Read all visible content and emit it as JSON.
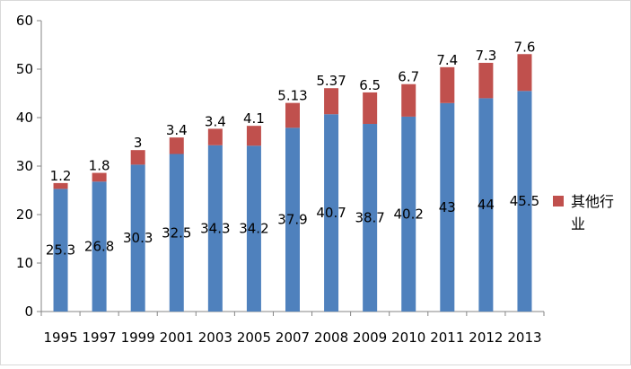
{
  "chart_data": {
    "type": "bar",
    "stacked": true,
    "title": "",
    "xlabel": "",
    "ylabel": "",
    "ylim": [
      0,
      60
    ],
    "yticks": [
      0,
      10,
      20,
      30,
      40,
      50,
      60
    ],
    "grid": false,
    "legend_position": "right",
    "categories": [
      "1995",
      "1997",
      "1999",
      "2001",
      "2003",
      "2005",
      "2007",
      "2008",
      "2009",
      "2010",
      "2011",
      "2012",
      "2013"
    ],
    "series": [
      {
        "color": "#4f81bd",
        "values": [
          25.3,
          26.8,
          30.3,
          32.5,
          34.3,
          34.2,
          37.9,
          40.7,
          38.7,
          40.2,
          43,
          44,
          45.5
        ],
        "labels": [
          "25.3",
          "26.8",
          "30.3",
          "32.5",
          "34.3",
          "34.2",
          "37.9",
          "40.7",
          "38.7",
          "40.2",
          "43",
          "44",
          "45.5"
        ]
      },
      {
        "name": "其他行业",
        "color": "#c0504d",
        "values": [
          1.2,
          1.8,
          3,
          3.4,
          3.4,
          4.1,
          5.13,
          5.37,
          6.5,
          6.7,
          7.4,
          7.3,
          7.6
        ],
        "labels": [
          "1.2",
          "1.8",
          "3",
          "3.4",
          "3.4",
          "4.1",
          "5.13",
          "5.37",
          "6.5",
          "6.7",
          "7.4",
          "7.3",
          "7.6"
        ]
      }
    ],
    "legend": {
      "label_line1": "其他行",
      "label_line2": "业"
    }
  }
}
